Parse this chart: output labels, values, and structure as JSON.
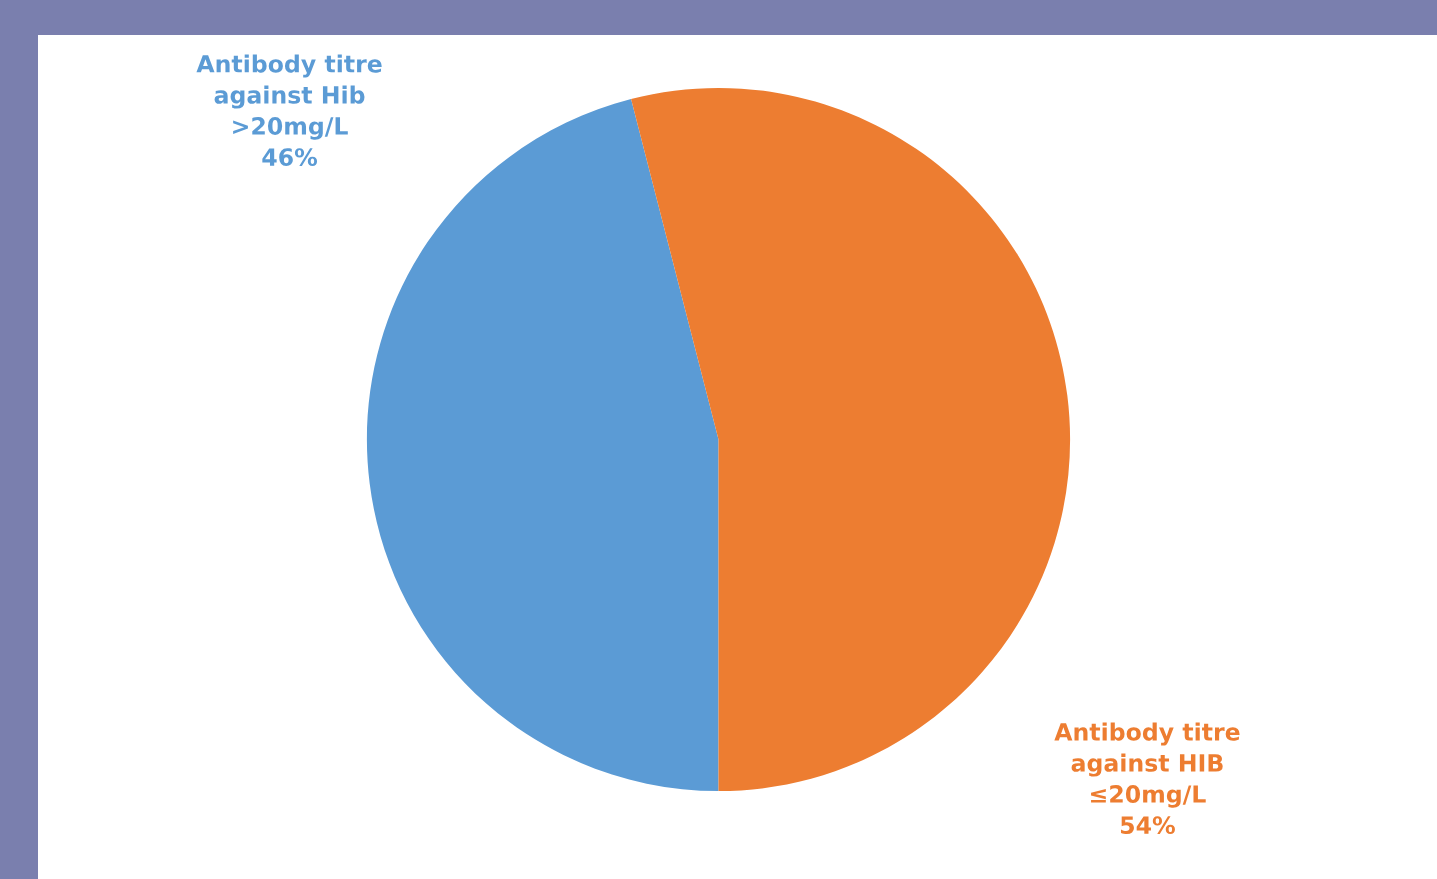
{
  "chart_data": {
    "type": "pie",
    "categories": [
      "Antibody titre\nagainst Hib\n>20mg/L",
      "Antibody titre\nagainst HIB\n≤20mg/L"
    ],
    "values": [
      46,
      54
    ],
    "value_labels": [
      "46%",
      "54%"
    ],
    "colors": [
      "#5b9bd5",
      "#ed7d31"
    ],
    "legend": false
  }
}
